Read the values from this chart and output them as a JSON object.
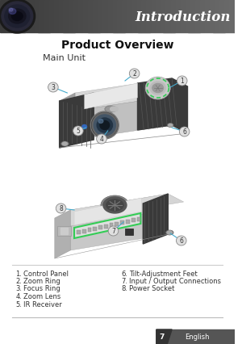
{
  "title": "Introduction",
  "section_title": "Product Overview",
  "subsection": "Main Unit",
  "bg_color": "#ffffff",
  "header_gradient_left": "#3a3a3a",
  "header_gradient_right": "#686868",
  "header_text_color": "#ffffff",
  "header_title": "Introduction",
  "footer_bar_color": "#555555",
  "footer_tab_color": "#333333",
  "footer_text": "English",
  "footer_page": "7",
  "list_left": [
    [
      "1.",
      "Control Panel"
    ],
    [
      "2.",
      "Zoom Ring"
    ],
    [
      "3.",
      "Focus Ring"
    ],
    [
      "4.",
      "Zoom Lens"
    ],
    [
      "5.",
      "IR Receiver"
    ]
  ],
  "list_right": [
    [
      "6.",
      "Tilt-Adjustment Feet"
    ],
    [
      "7.",
      "Input / Output Connections"
    ],
    [
      "8.",
      "Power Socket"
    ]
  ],
  "accent_green": "#33cc55",
  "label_line_color": "#44aacc",
  "label_bg": "#e8e8e8",
  "label_border": "#999999"
}
